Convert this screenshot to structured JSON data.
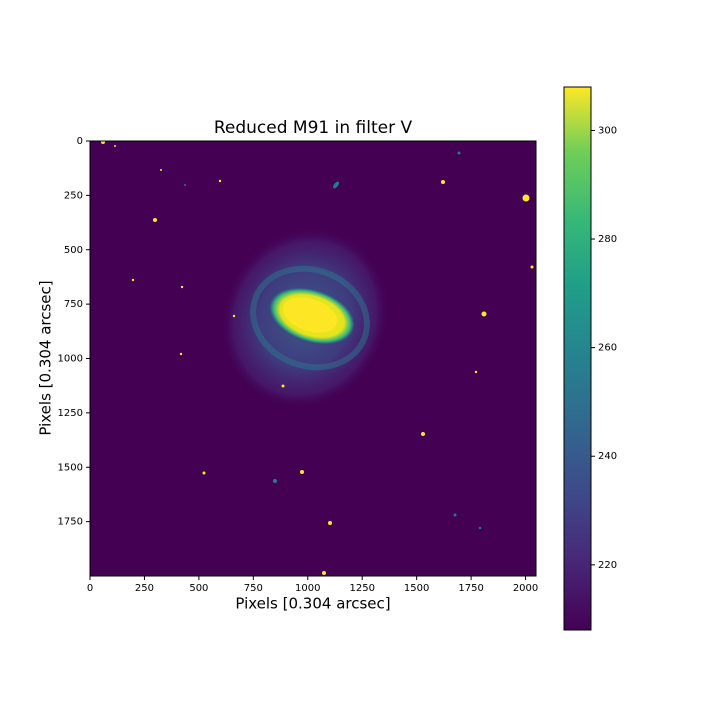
{
  "chart_data": {
    "type": "image",
    "title": "Reduced M91 in filter V",
    "xlabel": "Pixels [0.304 arcsec]",
    "ylabel": "Pixels [0.304 arcsec]",
    "xlim": [
      0,
      2048
    ],
    "ylim": [
      2000,
      0
    ],
    "xticks": [
      0,
      250,
      500,
      750,
      1000,
      1250,
      1500,
      1750,
      2000
    ],
    "yticks": [
      0,
      250,
      500,
      750,
      1000,
      1250,
      1500,
      1750
    ],
    "clim": [
      208,
      308
    ],
    "cticks": [
      220,
      240,
      260,
      280,
      300
    ]
  }
}
